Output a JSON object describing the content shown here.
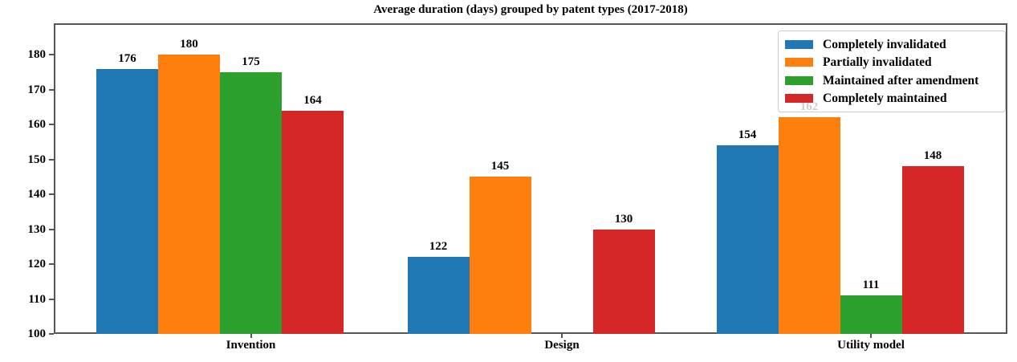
{
  "chart_data": {
    "type": "bar",
    "title": "Average duration (days) grouped by patent types (2017-2018)",
    "categories": [
      "Invention",
      "Design",
      "Utility model"
    ],
    "series": [
      {
        "name": "Completely invalidated",
        "color": "#1f77b4",
        "values": [
          176,
          122,
          154
        ]
      },
      {
        "name": "Partially invalidated",
        "color": "#ff7f0e",
        "values": [
          180,
          145,
          162
        ]
      },
      {
        "name": "Maintained after amendment",
        "color": "#2ca02c",
        "values": [
          175,
          null,
          111
        ]
      },
      {
        "name": "Completely maintained",
        "color": "#d62728",
        "values": [
          164,
          130,
          148
        ]
      }
    ],
    "bar_value_labels": [
      [
        "176",
        "122",
        "154"
      ],
      [
        "180",
        "145",
        "162"
      ],
      [
        "175",
        null,
        "111"
      ],
      [
        "164",
        "130",
        "148"
      ]
    ],
    "xlabel": "",
    "ylabel": "",
    "ylim": [
      100,
      189
    ],
    "yticks": [
      "100",
      "110",
      "120",
      "130",
      "140",
      "150",
      "160",
      "170",
      "180"
    ],
    "grid": false,
    "legend_position": "upper right",
    "axis_color": "#555555"
  }
}
